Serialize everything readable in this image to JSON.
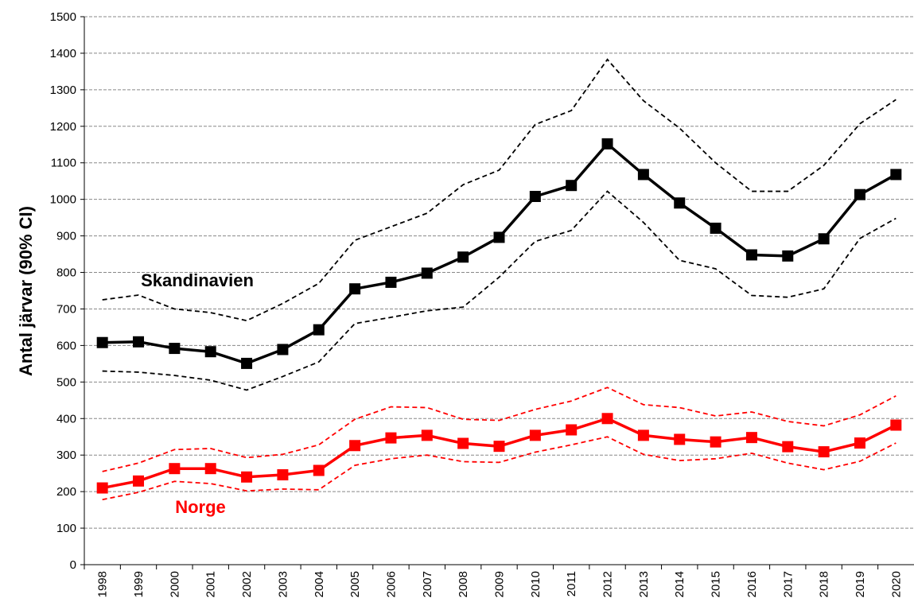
{
  "chart_data": {
    "type": "line",
    "y_label": "Antal järvar (90% CI)",
    "categories": [
      "1998",
      "1999",
      "2000",
      "2001",
      "2002",
      "2003",
      "2004",
      "2005",
      "2006",
      "2007",
      "2008",
      "2009",
      "2010",
      "2011",
      "2012",
      "2013",
      "2014",
      "2015",
      "2016",
      "2017",
      "2018",
      "2019",
      "2020"
    ],
    "series": [
      {
        "name": "Skandinavien",
        "color": "#000000",
        "values": [
          608,
          610,
          592,
          583,
          551,
          589,
          643,
          755,
          773,
          798,
          842,
          896,
          1008,
          1038,
          1152,
          1068,
          990,
          921,
          848,
          845,
          892,
          1013,
          1068
        ],
        "upper": [
          725,
          738,
          700,
          690,
          668,
          715,
          770,
          888,
          925,
          962,
          1040,
          1080,
          1205,
          1243,
          1383,
          1270,
          1195,
          1100,
          1022,
          1022,
          1093,
          1207,
          1273
        ],
        "lower": [
          530,
          527,
          518,
          505,
          478,
          515,
          555,
          660,
          677,
          695,
          705,
          787,
          885,
          915,
          1022,
          937,
          833,
          810,
          737,
          732,
          755,
          893,
          948
        ]
      },
      {
        "name": "Norge",
        "color": "#ff0000",
        "values": [
          210,
          229,
          263,
          263,
          240,
          246,
          258,
          326,
          347,
          354,
          332,
          324,
          354,
          369,
          400,
          354,
          343,
          336,
          348,
          323,
          309,
          333,
          382
        ],
        "upper": [
          255,
          278,
          315,
          318,
          293,
          302,
          328,
          398,
          432,
          430,
          398,
          395,
          425,
          448,
          485,
          438,
          430,
          407,
          418,
          392,
          380,
          410,
          462
        ],
        "lower": [
          178,
          198,
          228,
          222,
          202,
          207,
          205,
          272,
          290,
          300,
          282,
          280,
          308,
          328,
          350,
          302,
          285,
          290,
          305,
          278,
          260,
          283,
          333
        ]
      }
    ],
    "ylim": [
      0,
      1500
    ],
    "yticks": [
      0,
      100,
      200,
      300,
      400,
      500,
      600,
      700,
      800,
      900,
      1000,
      1100,
      1200,
      1300,
      1400,
      1500
    ],
    "grid": true
  }
}
